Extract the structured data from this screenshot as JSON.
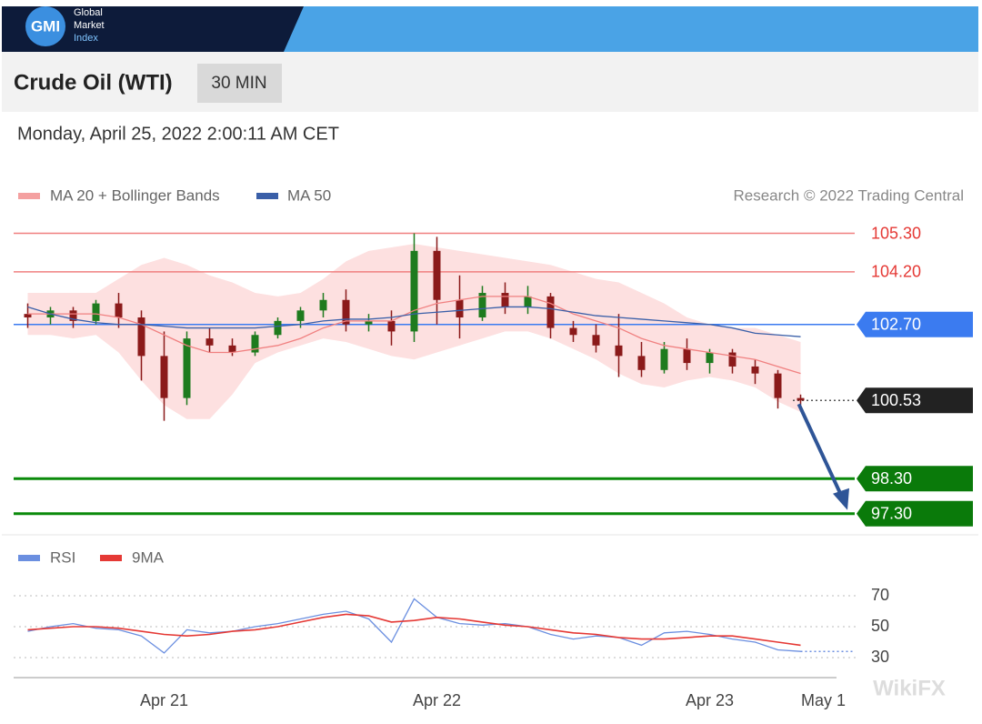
{
  "header": {
    "logo": "GMI",
    "brand": [
      "Global",
      "Market",
      "Index"
    ]
  },
  "title": "Crude Oil (WTI)",
  "timeframe": "30 MIN",
  "timestamp": "Monday, April 25, 2022 2:00:11 AM CET",
  "watermark": "WikiFX",
  "chart_data": [
    {
      "type": "candlestick",
      "note": "Research © 2022 Trading Central",
      "ylim": [
        96.8,
        105.6
      ],
      "up_color": "#1e7b1e",
      "down_color": "#8b1a1a",
      "open": [
        103.0,
        102.9,
        103.1,
        102.8,
        103.3,
        102.9,
        101.8,
        100.6,
        102.3,
        102.1,
        101.9,
        102.4,
        102.8,
        103.1,
        103.4,
        102.7,
        102.8,
        102.5,
        104.8,
        103.4,
        102.9,
        103.6,
        103.2,
        103.5,
        102.6,
        102.4,
        102.1,
        101.8,
        101.4,
        102.0,
        101.6,
        101.9,
        101.5,
        101.3,
        100.6,
        null
      ],
      "high": [
        103.3,
        103.2,
        103.2,
        103.4,
        103.6,
        103.1,
        102.5,
        102.5,
        102.6,
        102.3,
        102.5,
        102.9,
        103.2,
        103.6,
        103.7,
        103.0,
        103.1,
        105.3,
        105.2,
        104.1,
        103.8,
        103.9,
        103.8,
        103.6,
        102.8,
        102.7,
        103.0,
        102.2,
        102.2,
        102.3,
        102.0,
        102.0,
        101.7,
        101.4,
        100.7,
        null
      ],
      "low": [
        102.6,
        102.7,
        102.6,
        102.7,
        102.6,
        101.1,
        99.95,
        100.4,
        101.9,
        101.8,
        101.8,
        102.3,
        102.6,
        102.9,
        102.5,
        102.5,
        102.1,
        102.2,
        102.7,
        102.3,
        102.8,
        103.0,
        103.0,
        102.3,
        102.2,
        101.9,
        101.2,
        101.2,
        101.3,
        101.4,
        101.3,
        101.3,
        101.0,
        100.3,
        100.4,
        null
      ],
      "close": [
        102.9,
        103.1,
        102.8,
        103.3,
        102.9,
        101.8,
        100.6,
        102.3,
        102.1,
        101.9,
        102.4,
        102.8,
        103.1,
        103.4,
        102.7,
        102.8,
        102.5,
        104.8,
        103.4,
        102.9,
        103.6,
        103.2,
        103.5,
        102.6,
        102.4,
        102.1,
        101.8,
        101.4,
        102.0,
        101.6,
        101.9,
        101.5,
        101.3,
        100.6,
        100.53,
        null
      ],
      "series": [
        {
          "name": "MA 20 + Bollinger Bands",
          "color": "#f08080",
          "band_color": "#fde0e0",
          "values": [
            103.0,
            103.0,
            103.0,
            103.0,
            102.9,
            102.7,
            102.4,
            102.1,
            101.9,
            101.9,
            102.0,
            102.1,
            102.3,
            102.6,
            102.8,
            102.8,
            102.8,
            103.1,
            103.3,
            103.4,
            103.5,
            103.5,
            103.5,
            103.3,
            103.0,
            102.8,
            102.6,
            102.3,
            102.1,
            102.0,
            101.9,
            101.8,
            101.7,
            101.5,
            101.3,
            null
          ],
          "upper": [
            103.6,
            103.6,
            103.6,
            103.6,
            104.0,
            104.4,
            104.6,
            104.4,
            104.1,
            103.9,
            103.6,
            103.5,
            103.6,
            104.0,
            104.5,
            104.8,
            104.9,
            105.0,
            104.9,
            104.8,
            104.7,
            104.6,
            104.5,
            104.4,
            104.2,
            104.0,
            103.9,
            103.6,
            103.3,
            102.9,
            102.7,
            102.6,
            102.6,
            102.4,
            102.2,
            null
          ],
          "lower": [
            102.4,
            102.4,
            102.3,
            102.4,
            101.9,
            101.1,
            100.4,
            100.0,
            100.0,
            100.7,
            101.6,
            101.9,
            102.1,
            102.3,
            102.2,
            102.0,
            101.8,
            101.7,
            101.9,
            102.1,
            102.3,
            102.5,
            102.5,
            102.3,
            102.0,
            101.7,
            101.3,
            101.0,
            100.9,
            101.1,
            101.2,
            101.1,
            100.9,
            100.5,
            100.2,
            null
          ]
        },
        {
          "name": "MA 50",
          "color": "#3a5fa8",
          "values": [
            103.2,
            103.0,
            102.85,
            102.75,
            102.7,
            102.7,
            102.65,
            102.6,
            102.6,
            102.6,
            102.6,
            102.65,
            102.7,
            102.8,
            102.85,
            102.85,
            102.9,
            103.0,
            103.05,
            103.1,
            103.15,
            103.2,
            103.2,
            103.15,
            103.05,
            102.95,
            102.9,
            102.85,
            102.8,
            102.75,
            102.7,
            102.6,
            102.45,
            102.4,
            102.35,
            null
          ]
        }
      ],
      "levels": [
        {
          "value": 105.3,
          "label": "105.30",
          "color": "#f08080",
          "text_color": "#e53935",
          "style": "thin"
        },
        {
          "value": 104.2,
          "label": "104.20",
          "color": "#f08080",
          "text_color": "#e53935",
          "style": "thin"
        },
        {
          "value": 102.7,
          "label": "102.70",
          "color": "#3b7bf0",
          "text_color": "#ffffff",
          "box": "#3b7bf0",
          "style": "thin"
        },
        {
          "value": 100.53,
          "label": "100.53",
          "color": "#555555",
          "text_color": "#ffffff",
          "box": "#222222",
          "style": "dotted"
        },
        {
          "value": 98.3,
          "label": "98.30",
          "color": "#0a8a0a",
          "text_color": "#ffffff",
          "box": "#0a7a0a",
          "style": "thick"
        },
        {
          "value": 97.3,
          "label": "97.30",
          "color": "#0a8a0a",
          "text_color": "#ffffff",
          "box": "#0a7a0a",
          "style": "thick"
        }
      ]
    },
    {
      "type": "line",
      "ylim": [
        20,
        80
      ],
      "yticks": [
        30,
        50,
        70
      ],
      "grid": true,
      "categories": [
        null,
        null,
        null,
        null,
        null,
        null,
        "Apr 21",
        null,
        null,
        null,
        null,
        null,
        null,
        null,
        null,
        null,
        null,
        null,
        "Apr 22",
        null,
        null,
        null,
        null,
        null,
        null,
        null,
        null,
        null,
        null,
        null,
        "Apr 23",
        null,
        null,
        null,
        null,
        "May 1"
      ],
      "series": [
        {
          "name": "RSI",
          "color": "#6b8fe0",
          "values": [
            47,
            50,
            52,
            49,
            48,
            44,
            33,
            48,
            46,
            47,
            50,
            52,
            55,
            58,
            60,
            55,
            40,
            68,
            56,
            52,
            51,
            52,
            50,
            45,
            42,
            44,
            43,
            38,
            46,
            47,
            45,
            42,
            40,
            35,
            34,
            null
          ]
        },
        {
          "name": "9MA",
          "color": "#e53935",
          "values": [
            48,
            49,
            50,
            50,
            49,
            47,
            45,
            44,
            45,
            47,
            48,
            50,
            53,
            56,
            58,
            57,
            53,
            54,
            56,
            55,
            53,
            51,
            50,
            48,
            46,
            45,
            43,
            42,
            42,
            43,
            44,
            44,
            42,
            40,
            38,
            null
          ]
        }
      ]
    }
  ]
}
